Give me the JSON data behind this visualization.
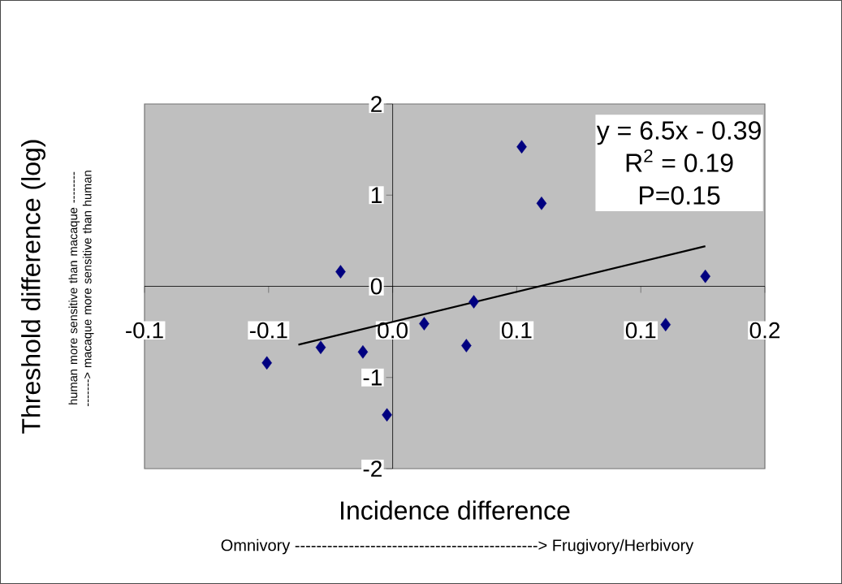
{
  "chart_data": {
    "type": "scatter",
    "xlabel": "Incidence difference",
    "ylabel": "Threshold difference (log)",
    "xlim": [
      -0.1,
      0.15
    ],
    "ylim": [
      -2,
      2
    ],
    "xticks": [
      -0.1,
      {
        "value": -0.05,
        "label": "-0.1"
      },
      {
        "value": 0,
        "label": "0.0"
      },
      {
        "value": 0.05,
        "label": "0.1"
      },
      0.1,
      {
        "value": 0.15,
        "label": "0.2"
      }
    ],
    "yticks": [
      -2,
      -1,
      0,
      1,
      2
    ],
    "grid": false,
    "series": [
      {
        "marker": "diamond",
        "color": "#000080",
        "x": [
          -0.0507,
          -0.029,
          -0.021,
          -0.012,
          -0.0023,
          0.0127,
          0.0297,
          0.0327,
          0.052,
          0.06,
          0.11,
          0.126
        ],
        "values": [
          -0.84,
          -0.67,
          0.16,
          -0.72,
          -1.41,
          -0.41,
          -0.65,
          -0.17,
          1.53,
          0.91,
          -0.42,
          0.11
        ]
      },
      {
        "type": "line",
        "marker": "none",
        "color": "#000000",
        "x": [
          -0.038,
          0.126
        ],
        "values": [
          -0.64,
          0.44
        ]
      }
    ],
    "annotations": [
      "y = 6.5x - 0.39",
      "R$^{2}$ = 0.19",
      "P=0.15",
      "human more sensitive than macaque ---------------> macaque more sensitive than human",
      "Omnivory ---------------------------------------------> Frugivory/Herbivory"
    ]
  }
}
